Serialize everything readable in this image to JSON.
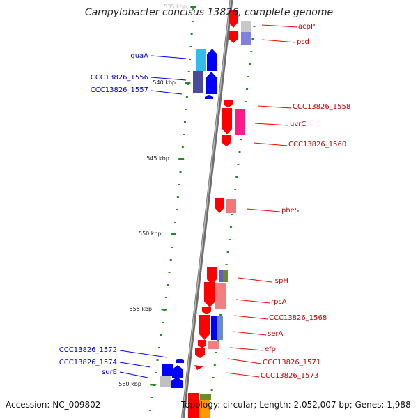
{
  "title": "Campylobacter concisus 13826, complete genome",
  "footer": {
    "accession": "Accession: NC_009802",
    "topology": "Topology: circular; Length: 2,052,007 bp; Genes: 1,988"
  },
  "colors": {
    "backbone": "#808080",
    "forward_gene": "#ff0000",
    "reverse_gene": "#0000ff",
    "tick": "#228b22",
    "forward_label": "#cc0000",
    "reverse_label": "#0000cc"
  },
  "ticks": [
    {
      "label": "535 kbp",
      "kbp": 535
    },
    {
      "label": "540 kbp",
      "kbp": 540
    },
    {
      "label": "545 kbp",
      "kbp": 545
    },
    {
      "label": "550 kbp",
      "kbp": 550
    },
    {
      "label": "555 kbp",
      "kbp": 555
    },
    {
      "label": "560 kbp",
      "kbp": 560
    }
  ],
  "genes_forward": [
    {
      "name": "acpP"
    },
    {
      "name": "psd"
    },
    {
      "name": "CCC13826_1558"
    },
    {
      "name": "uvrC"
    },
    {
      "name": "CCC13826_1560"
    },
    {
      "name": "pheS"
    },
    {
      "name": "ispH"
    },
    {
      "name": "rpsA"
    },
    {
      "name": "CCC13826_1568"
    },
    {
      "name": "serA"
    },
    {
      "name": "efp"
    },
    {
      "name": "CCC13826_1571"
    },
    {
      "name": "CCC13826_1573"
    }
  ],
  "genes_reverse": [
    {
      "name": "guaA"
    },
    {
      "name": "CCC13826_1556"
    },
    {
      "name": "CCC13826_1557"
    },
    {
      "name": "CCC13826_1572"
    },
    {
      "name": "CCC13826_1574"
    },
    {
      "name": "surE"
    }
  ]
}
